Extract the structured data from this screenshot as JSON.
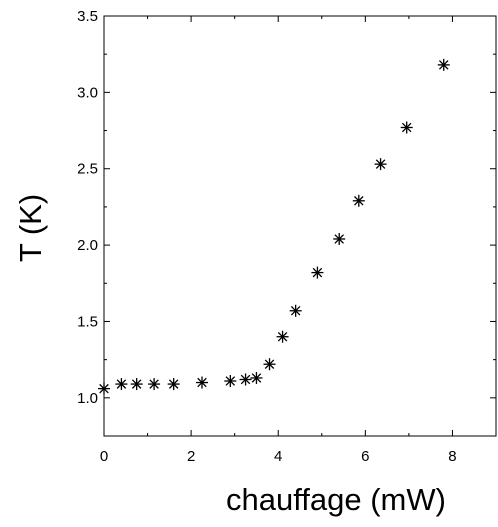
{
  "chart_data": {
    "type": "scatter",
    "xlabel": "chauffage (mW)",
    "ylabel": "T (K)",
    "xlim": [
      0,
      9
    ],
    "ylim": [
      0.75,
      3.5
    ],
    "xticks": [
      0,
      2,
      4,
      6,
      8
    ],
    "xtick_labels": [
      "0",
      "2",
      "4",
      "6",
      "8"
    ],
    "yticks": [
      1.0,
      1.5,
      2.0,
      2.5,
      3.0,
      3.5
    ],
    "ytick_labels": [
      "1.0",
      "1.5",
      "2.0",
      "2.5",
      "3.0",
      "3.5"
    ],
    "marker": "asterisk",
    "marker_color": "#000000",
    "grid": false,
    "series": [
      {
        "points": [
          {
            "x": 0.0,
            "y": 1.06
          },
          {
            "x": 0.4,
            "y": 1.09
          },
          {
            "x": 0.75,
            "y": 1.09
          },
          {
            "x": 1.15,
            "y": 1.09
          },
          {
            "x": 1.6,
            "y": 1.09
          },
          {
            "x": 2.25,
            "y": 1.1
          },
          {
            "x": 2.9,
            "y": 1.11
          },
          {
            "x": 3.25,
            "y": 1.12
          },
          {
            "x": 3.5,
            "y": 1.13
          },
          {
            "x": 3.8,
            "y": 1.22
          },
          {
            "x": 4.1,
            "y": 1.4
          },
          {
            "x": 4.4,
            "y": 1.57
          },
          {
            "x": 4.9,
            "y": 1.82
          },
          {
            "x": 5.4,
            "y": 2.04
          },
          {
            "x": 5.85,
            "y": 2.29
          },
          {
            "x": 6.35,
            "y": 2.53
          },
          {
            "x": 6.95,
            "y": 2.77
          },
          {
            "x": 7.8,
            "y": 3.18
          }
        ]
      }
    ]
  }
}
